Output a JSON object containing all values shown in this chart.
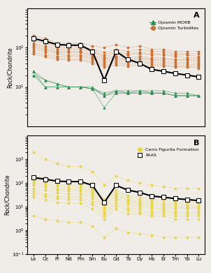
{
  "elements": [
    "La",
    "Ce",
    "Pr",
    "Nd",
    "Pm",
    "Sm",
    "Eu",
    "Gd",
    "Tb",
    "Dy",
    "Ho",
    "Er",
    "Tm",
    "Yb",
    "Lu"
  ],
  "x_indices": [
    0,
    1,
    2,
    3,
    4,
    5,
    6,
    7,
    8,
    9,
    10,
    11,
    12,
    13,
    14
  ],
  "morb_series": [
    [
      25,
      10,
      10,
      10,
      10,
      10,
      6,
      8,
      7,
      8,
      7,
      7,
      6,
      6,
      6
    ],
    [
      25,
      15,
      12,
      10,
      10,
      9,
      3,
      7,
      7,
      7,
      7,
      7,
      6,
      6,
      6
    ],
    [
      20,
      10,
      10,
      10,
      10,
      9,
      7,
      8,
      8,
      8,
      8,
      8,
      7,
      7,
      6
    ],
    [
      20,
      15,
      12,
      10,
      10,
      9,
      6,
      7,
      7,
      7,
      7,
      7,
      6,
      6,
      6
    ]
  ],
  "turbidites_series": [
    [
      200,
      170,
      130,
      130,
      130,
      110,
      100,
      120,
      100,
      110,
      90,
      90,
      80,
      80,
      80
    ],
    [
      170,
      140,
      110,
      110,
      110,
      90,
      75,
      90,
      80,
      90,
      80,
      80,
      70,
      70,
      70
    ],
    [
      150,
      130,
      100,
      100,
      100,
      80,
      65,
      80,
      70,
      75,
      70,
      70,
      65,
      65,
      60
    ],
    [
      130,
      110,
      90,
      90,
      90,
      75,
      60,
      70,
      65,
      70,
      65,
      65,
      60,
      55,
      55
    ],
    [
      120,
      100,
      80,
      80,
      80,
      65,
      55,
      60,
      55,
      60,
      55,
      55,
      50,
      50,
      50
    ],
    [
      110,
      90,
      75,
      75,
      75,
      60,
      50,
      55,
      50,
      55,
      50,
      50,
      48,
      48,
      45
    ],
    [
      100,
      85,
      70,
      65,
      65,
      55,
      45,
      50,
      48,
      50,
      48,
      45,
      42,
      42,
      40
    ],
    [
      90,
      75,
      60,
      60,
      60,
      50,
      40,
      45,
      42,
      45,
      42,
      40,
      38,
      38,
      36
    ],
    [
      80,
      65,
      55,
      52,
      52,
      44,
      36,
      40,
      38,
      40,
      38,
      36,
      34,
      34,
      33
    ],
    [
      70,
      58,
      50,
      48,
      48,
      40,
      32,
      36,
      34,
      36,
      34,
      34,
      32,
      32,
      30
    ]
  ],
  "paas_A": [
    170,
    145,
    120,
    115,
    115,
    80,
    15,
    80,
    50,
    40,
    28,
    25,
    22,
    20,
    18
  ],
  "cff_series": [
    [
      2000,
      1000,
      700,
      500,
      500,
      300,
      80,
      200,
      130,
      100,
      80,
      70,
      60,
      60,
      60
    ],
    [
      200,
      170,
      120,
      100,
      100,
      60,
      20,
      50,
      30,
      25,
      20,
      18,
      16,
      15,
      14
    ],
    [
      150,
      120,
      90,
      80,
      80,
      50,
      15,
      40,
      25,
      20,
      16,
      14,
      13,
      12,
      11
    ],
    [
      120,
      100,
      75,
      65,
      65,
      42,
      12,
      32,
      20,
      16,
      13,
      12,
      11,
      10,
      10
    ],
    [
      100,
      85,
      60,
      55,
      55,
      35,
      10,
      28,
      18,
      14,
      11,
      10,
      9,
      9,
      9
    ],
    [
      80,
      65,
      50,
      45,
      45,
      28,
      8,
      22,
      15,
      12,
      9,
      8,
      8,
      8,
      8
    ],
    [
      60,
      50,
      38,
      35,
      35,
      22,
      6,
      18,
      12,
      10,
      8,
      7,
      6,
      6,
      6
    ],
    [
      45,
      35,
      28,
      25,
      25,
      16,
      5,
      14,
      9,
      8,
      6,
      6,
      5,
      5,
      5
    ],
    [
      35,
      28,
      22,
      20,
      20,
      12,
      4,
      11,
      7,
      6,
      5,
      5,
      4,
      4,
      4
    ],
    [
      25,
      20,
      15,
      14,
      14,
      8,
      3,
      8,
      5,
      5,
      4,
      4,
      3,
      3,
      3
    ],
    [
      4,
      3,
      2.5,
      2.2,
      2.2,
      1.5,
      0.5,
      1.2,
      0.8,
      0.7,
      0.6,
      0.5,
      0.5,
      0.5,
      0.5
    ]
  ],
  "paas_B": [
    170,
    145,
    120,
    115,
    115,
    80,
    15,
    80,
    50,
    40,
    28,
    25,
    22,
    20,
    18
  ],
  "morb_color": "#2d8b4e",
  "turbidites_color": "#c87137",
  "cff_color": "#e8d44d",
  "paas_color": "#000000",
  "bg_color": "#f0ede8",
  "ylabel": "Rock/Chondrite",
  "title_A": "A",
  "title_B": "B",
  "legend_morb": "Ojosmín MORB",
  "legend_turbidites": "Ojosmín Turbidites",
  "legend_cff": "Cerro Figurita Formation",
  "legend_paas": "PAAS",
  "ylim_A": [
    1,
    1000
  ],
  "ylim_B": [
    0.1,
    10000
  ]
}
